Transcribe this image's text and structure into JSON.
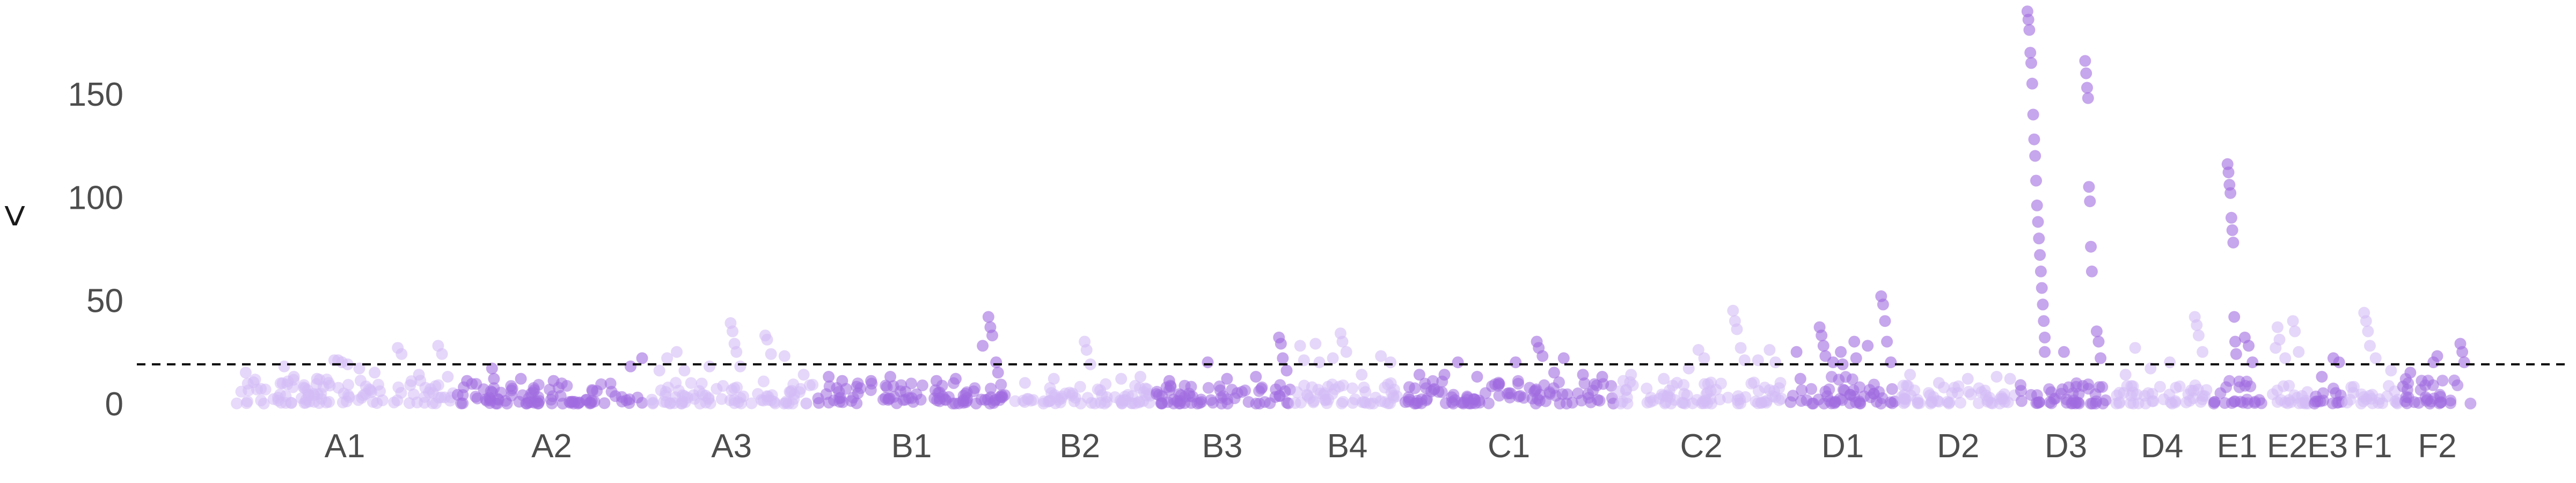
{
  "chart_data": {
    "type": "scatter",
    "subtype": "manhattan",
    "title": "",
    "xlabel": "",
    "ylabel": "<",
    "ylim": [
      0,
      195
    ],
    "yticks": [
      0,
      50,
      100,
      150
    ],
    "threshold": 19,
    "colors": {
      "light": "#d4bcf5",
      "dark": "#a06be0"
    },
    "groups": [
      {
        "label": "A1",
        "span": [
          1,
          12.3
        ],
        "color": "light",
        "base_max": 12,
        "peaks": [
          [
            1.5,
            15
          ],
          [
            3.5,
            18
          ],
          [
            4,
            13
          ],
          [
            5.2,
            12
          ],
          [
            6.1,
            21
          ],
          [
            6.3,
            21
          ],
          [
            6.5,
            20
          ],
          [
            6.8,
            19
          ],
          [
            7.4,
            17
          ],
          [
            8.2,
            15
          ],
          [
            9.4,
            27
          ],
          [
            9.6,
            24
          ],
          [
            10.5,
            14
          ],
          [
            11.5,
            28
          ],
          [
            11.7,
            24
          ],
          [
            12,
            13
          ]
        ]
      },
      {
        "label": "A2",
        "span": [
          12.5,
          22.3
        ],
        "color": "dark",
        "base_max": 10,
        "peaks": [
          [
            13,
            11
          ],
          [
            14.3,
            17
          ],
          [
            14.4,
            12
          ],
          [
            15.8,
            12
          ],
          [
            17.5,
            11
          ],
          [
            21.5,
            18
          ],
          [
            22.1,
            22
          ]
        ]
      },
      {
        "label": "A3",
        "span": [
          22.5,
          31
        ],
        "color": "light",
        "base_max": 11,
        "peaks": [
          [
            23,
            16
          ],
          [
            23.4,
            22
          ],
          [
            23.9,
            25
          ],
          [
            24.3,
            16
          ],
          [
            25.6,
            18
          ],
          [
            26.7,
            39
          ],
          [
            26.8,
            35
          ],
          [
            26.9,
            29
          ],
          [
            27,
            25
          ],
          [
            27.2,
            18
          ],
          [
            28.5,
            33
          ],
          [
            28.6,
            31
          ],
          [
            28.8,
            24
          ],
          [
            29.5,
            23
          ],
          [
            30.5,
            14
          ]
        ]
      },
      {
        "label": "B1",
        "span": [
          31.2,
          41
        ],
        "color": "dark",
        "base_max": 10,
        "peaks": [
          [
            31.8,
            13
          ],
          [
            32.5,
            11
          ],
          [
            34,
            11
          ],
          [
            35,
            13
          ],
          [
            37.4,
            11
          ],
          [
            38.4,
            12
          ],
          [
            39.8,
            28
          ],
          [
            40.1,
            42
          ],
          [
            40.2,
            37
          ],
          [
            40.3,
            33
          ],
          [
            40.5,
            20
          ],
          [
            40.6,
            15
          ]
        ]
      },
      {
        "label": "B2",
        "span": [
          41.2,
          48.5
        ],
        "color": "light",
        "base_max": 10,
        "peaks": [
          [
            42,
            10
          ],
          [
            43.5,
            12
          ],
          [
            45.1,
            30
          ],
          [
            45.2,
            26
          ],
          [
            45.4,
            19
          ],
          [
            47,
            12
          ],
          [
            48,
            13
          ]
        ]
      },
      {
        "label": "B3",
        "span": [
          48.7,
          55.8
        ],
        "color": "dark",
        "base_max": 9,
        "peaks": [
          [
            49.5,
            11
          ],
          [
            51.5,
            20
          ],
          [
            52.5,
            12
          ],
          [
            54,
            13
          ],
          [
            55.2,
            32
          ],
          [
            55.3,
            29
          ],
          [
            55.4,
            22
          ],
          [
            55.6,
            16
          ]
        ]
      },
      {
        "label": "B4",
        "span": [
          56,
          61.5
        ],
        "color": "light",
        "base_max": 10,
        "peaks": [
          [
            56.3,
            28
          ],
          [
            56.5,
            21
          ],
          [
            57.1,
            29
          ],
          [
            57.3,
            20
          ],
          [
            58,
            22
          ],
          [
            58.4,
            34
          ],
          [
            58.5,
            30
          ],
          [
            58.7,
            25
          ],
          [
            59.5,
            14
          ],
          [
            60.5,
            23
          ],
          [
            61,
            20
          ]
        ]
      },
      {
        "label": "C1",
        "span": [
          61.7,
          72.6
        ],
        "color": "dark",
        "base_max": 11,
        "peaks": [
          [
            62.5,
            14
          ],
          [
            63.8,
            14
          ],
          [
            64.5,
            20
          ],
          [
            65.5,
            13
          ],
          [
            67.5,
            20
          ],
          [
            68.6,
            30
          ],
          [
            68.7,
            27
          ],
          [
            68.9,
            23
          ],
          [
            69.5,
            15
          ],
          [
            70,
            22
          ],
          [
            71,
            14
          ],
          [
            72,
            13
          ]
        ]
      },
      {
        "label": "C2",
        "span": [
          72.8,
          81.5
        ],
        "color": "light",
        "base_max": 11,
        "peaks": [
          [
            73.5,
            14
          ],
          [
            75.2,
            12
          ],
          [
            76.5,
            17
          ],
          [
            77,
            26
          ],
          [
            77.3,
            22
          ],
          [
            78.8,
            45
          ],
          [
            78.9,
            40
          ],
          [
            79,
            36
          ],
          [
            79.2,
            27
          ],
          [
            79.4,
            21
          ],
          [
            80.1,
            21
          ],
          [
            80.7,
            26
          ],
          [
            81,
            20
          ]
        ]
      },
      {
        "label": "D1",
        "span": [
          81.7,
          87.3
        ],
        "color": "dark",
        "base_max": 13,
        "peaks": [
          [
            82.1,
            25
          ],
          [
            82.3,
            12
          ],
          [
            83.3,
            37
          ],
          [
            83.4,
            33
          ],
          [
            83.5,
            28
          ],
          [
            83.6,
            23
          ],
          [
            84,
            20
          ],
          [
            84.4,
            25
          ],
          [
            84.5,
            19
          ],
          [
            85.1,
            30
          ],
          [
            85.2,
            22
          ],
          [
            85.8,
            28
          ],
          [
            86.5,
            52
          ],
          [
            86.6,
            48
          ],
          [
            86.7,
            40
          ],
          [
            86.8,
            30
          ],
          [
            87,
            20
          ]
        ]
      },
      {
        "label": "D2",
        "span": [
          87.5,
          93.5
        ],
        "color": "light",
        "base_max": 9,
        "peaks": [
          [
            88,
            14
          ],
          [
            89.5,
            10
          ],
          [
            91,
            12
          ],
          [
            92.5,
            13
          ],
          [
            93.2,
            12
          ]
        ]
      },
      {
        "label": "D3",
        "span": [
          93.7,
          98.5
        ],
        "color": "dark",
        "base_max": 10,
        "peaks": [
          [
            94.1,
            190
          ],
          [
            94.15,
            186
          ],
          [
            94.2,
            181
          ],
          [
            94.25,
            170
          ],
          [
            94.3,
            165
          ],
          [
            94.35,
            155
          ],
          [
            94.4,
            140
          ],
          [
            94.45,
            128
          ],
          [
            94.5,
            120
          ],
          [
            94.55,
            108
          ],
          [
            94.6,
            96
          ],
          [
            94.65,
            88
          ],
          [
            94.7,
            80
          ],
          [
            94.75,
            72
          ],
          [
            94.8,
            64
          ],
          [
            94.85,
            56
          ],
          [
            94.9,
            48
          ],
          [
            94.95,
            40
          ],
          [
            95,
            32
          ],
          [
            95,
            25
          ],
          [
            96,
            25
          ],
          [
            97.1,
            166
          ],
          [
            97.15,
            160
          ],
          [
            97.2,
            153
          ],
          [
            97.25,
            148
          ],
          [
            97.3,
            105
          ],
          [
            97.35,
            98
          ],
          [
            97.4,
            76
          ],
          [
            97.45,
            64
          ],
          [
            97.7,
            35
          ],
          [
            97.8,
            30
          ],
          [
            97.9,
            22
          ]
        ]
      },
      {
        "label": "D4",
        "span": [
          98.7,
          103.5
        ],
        "color": "light",
        "base_max": 10,
        "peaks": [
          [
            99.2,
            14
          ],
          [
            99.7,
            27
          ],
          [
            100.5,
            17
          ],
          [
            101.5,
            20
          ],
          [
            102.8,
            42
          ],
          [
            102.9,
            38
          ],
          [
            103,
            33
          ],
          [
            103.2,
            25
          ]
        ]
      },
      {
        "label": "E1",
        "span": [
          103.7,
          106.3
        ],
        "color": "dark",
        "base_max": 11,
        "peaks": [
          [
            104.5,
            116
          ],
          [
            104.55,
            112
          ],
          [
            104.6,
            106
          ],
          [
            104.65,
            102
          ],
          [
            104.7,
            90
          ],
          [
            104.75,
            84
          ],
          [
            104.8,
            78
          ],
          [
            104.85,
            42
          ],
          [
            104.9,
            30
          ],
          [
            104.95,
            24
          ],
          [
            105.4,
            32
          ],
          [
            105.6,
            28
          ],
          [
            105.8,
            20
          ]
        ]
      },
      {
        "label": "E2",
        "span": [
          106.5,
          108.7
        ],
        "color": "light",
        "base_max": 9,
        "peaks": [
          [
            107,
            27
          ],
          [
            107.1,
            37
          ],
          [
            107.2,
            31
          ],
          [
            107.5,
            22
          ],
          [
            107.9,
            40
          ],
          [
            108,
            35
          ],
          [
            108.2,
            25
          ]
        ]
      },
      {
        "label": "E3",
        "span": [
          108.9,
          110.5
        ],
        "color": "dark",
        "base_max": 9,
        "peaks": [
          [
            109.4,
            13
          ],
          [
            110,
            22
          ],
          [
            110.3,
            20
          ]
        ]
      },
      {
        "label": "F1",
        "span": [
          110.7,
          113.4
        ],
        "color": "light",
        "base_max": 9,
        "peaks": [
          [
            111.6,
            44
          ],
          [
            111.7,
            40
          ],
          [
            111.8,
            35
          ],
          [
            111.9,
            28
          ],
          [
            112.2,
            22
          ],
          [
            113,
            16
          ]
        ]
      },
      {
        "label": "F2",
        "span": [
          113.6,
          117.2
        ],
        "color": "dark",
        "base_max": 12,
        "peaks": [
          [
            114,
            15
          ],
          [
            115.2,
            20
          ],
          [
            115.4,
            23
          ],
          [
            116.6,
            29
          ],
          [
            116.7,
            25
          ],
          [
            116.8,
            20
          ]
        ]
      }
    ]
  }
}
